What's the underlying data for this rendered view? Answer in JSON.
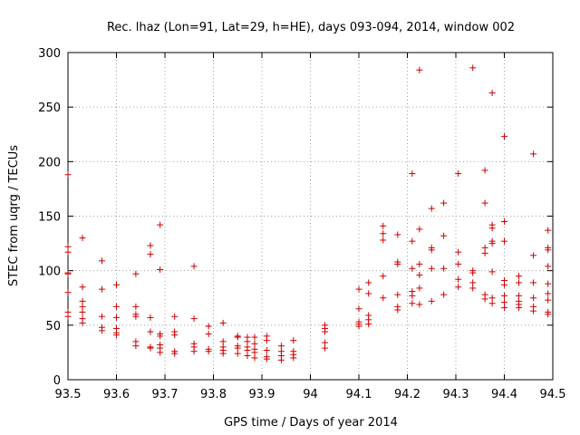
{
  "chart_data": {
    "type": "scatter",
    "title": "Rec. lhaz (Lon=91, Lat=29, h=HE), days 093-094, 2014, window 002",
    "xlabel": "GPS time / Days of year 2014",
    "ylabel": "STEC from uqrg / TECUs",
    "xlim": [
      93.5,
      94.5
    ],
    "ylim": [
      0,
      300
    ],
    "xticks": [
      "93.5",
      "93.6",
      "93.7",
      "93.8",
      "93.9",
      "94",
      "94.1",
      "94.2",
      "94.3",
      "94.4",
      "94.5"
    ],
    "yticks": [
      "0",
      "50",
      "100",
      "150",
      "200",
      "250",
      "300"
    ],
    "grid": true,
    "marker": "+",
    "color": "#cc0000",
    "points": [
      [
        93.5,
        188
      ],
      [
        93.5,
        122
      ],
      [
        93.5,
        117
      ],
      [
        93.5,
        98
      ],
      [
        93.5,
        97
      ],
      [
        93.5,
        80
      ],
      [
        93.5,
        62
      ],
      [
        93.5,
        58
      ],
      [
        93.53,
        130
      ],
      [
        93.53,
        85
      ],
      [
        93.53,
        72
      ],
      [
        93.53,
        67
      ],
      [
        93.53,
        62
      ],
      [
        93.53,
        56
      ],
      [
        93.53,
        52
      ],
      [
        93.57,
        109
      ],
      [
        93.57,
        83
      ],
      [
        93.57,
        58
      ],
      [
        93.57,
        48
      ],
      [
        93.57,
        45
      ],
      [
        93.6,
        87
      ],
      [
        93.6,
        67
      ],
      [
        93.6,
        57
      ],
      [
        93.6,
        47
      ],
      [
        93.6,
        43
      ],
      [
        93.6,
        41
      ],
      [
        93.64,
        97
      ],
      [
        93.64,
        67
      ],
      [
        93.64,
        60
      ],
      [
        93.64,
        58
      ],
      [
        93.64,
        35
      ],
      [
        93.64,
        31
      ],
      [
        93.67,
        123
      ],
      [
        93.67,
        115
      ],
      [
        93.67,
        57
      ],
      [
        93.67,
        44
      ],
      [
        93.67,
        30
      ],
      [
        93.67,
        29
      ],
      [
        93.69,
        142
      ],
      [
        93.69,
        101
      ],
      [
        93.69,
        42
      ],
      [
        93.69,
        40
      ],
      [
        93.69,
        32
      ],
      [
        93.69,
        29
      ],
      [
        93.69,
        25
      ],
      [
        93.72,
        58
      ],
      [
        93.72,
        44
      ],
      [
        93.72,
        41
      ],
      [
        93.72,
        26
      ],
      [
        93.72,
        24
      ],
      [
        93.76,
        104
      ],
      [
        93.76,
        56
      ],
      [
        93.76,
        33
      ],
      [
        93.76,
        30
      ],
      [
        93.76,
        26
      ],
      [
        93.79,
        49
      ],
      [
        93.79,
        42
      ],
      [
        93.79,
        28
      ],
      [
        93.79,
        26
      ],
      [
        93.82,
        52
      ],
      [
        93.82,
        35
      ],
      [
        93.82,
        30
      ],
      [
        93.82,
        27
      ],
      [
        93.82,
        24
      ],
      [
        93.85,
        40
      ],
      [
        93.85,
        39
      ],
      [
        93.85,
        31
      ],
      [
        93.85,
        29
      ],
      [
        93.85,
        24
      ],
      [
        93.87,
        39
      ],
      [
        93.87,
        35
      ],
      [
        93.87,
        30
      ],
      [
        93.87,
        27
      ],
      [
        93.87,
        22
      ],
      [
        93.885,
        39
      ],
      [
        93.885,
        33
      ],
      [
        93.885,
        28
      ],
      [
        93.885,
        25
      ],
      [
        93.885,
        20
      ],
      [
        93.91,
        40
      ],
      [
        93.91,
        36
      ],
      [
        93.91,
        27
      ],
      [
        93.91,
        21
      ],
      [
        93.91,
        19
      ],
      [
        93.94,
        31
      ],
      [
        93.94,
        26
      ],
      [
        93.94,
        22
      ],
      [
        93.94,
        18
      ],
      [
        93.965,
        36
      ],
      [
        93.965,
        26
      ],
      [
        93.965,
        23
      ],
      [
        93.965,
        20
      ],
      [
        94.03,
        50
      ],
      [
        94.03,
        47
      ],
      [
        94.03,
        44
      ],
      [
        94.03,
        34
      ],
      [
        94.03,
        29
      ],
      [
        94.1,
        83
      ],
      [
        94.1,
        65
      ],
      [
        94.1,
        53
      ],
      [
        94.1,
        51
      ],
      [
        94.1,
        49
      ],
      [
        94.12,
        89
      ],
      [
        94.12,
        79
      ],
      [
        94.12,
        59
      ],
      [
        94.12,
        55
      ],
      [
        94.12,
        51
      ],
      [
        94.15,
        141
      ],
      [
        94.15,
        134
      ],
      [
        94.15,
        128
      ],
      [
        94.15,
        95
      ],
      [
        94.15,
        75
      ],
      [
        94.18,
        133
      ],
      [
        94.18,
        108
      ],
      [
        94.18,
        106
      ],
      [
        94.18,
        78
      ],
      [
        94.18,
        67
      ],
      [
        94.18,
        64
      ],
      [
        94.21,
        189
      ],
      [
        94.21,
        127
      ],
      [
        94.21,
        102
      ],
      [
        94.21,
        81
      ],
      [
        94.21,
        77
      ],
      [
        94.21,
        70
      ],
      [
        94.225,
        284
      ],
      [
        94.225,
        138
      ],
      [
        94.225,
        106
      ],
      [
        94.225,
        96
      ],
      [
        94.225,
        84
      ],
      [
        94.225,
        69
      ],
      [
        94.25,
        157
      ],
      [
        94.25,
        121
      ],
      [
        94.25,
        119
      ],
      [
        94.25,
        102
      ],
      [
        94.25,
        72
      ],
      [
        94.275,
        162
      ],
      [
        94.275,
        132
      ],
      [
        94.275,
        102
      ],
      [
        94.275,
        78
      ],
      [
        94.305,
        189
      ],
      [
        94.305,
        117
      ],
      [
        94.305,
        106
      ],
      [
        94.305,
        92
      ],
      [
        94.305,
        85
      ],
      [
        94.335,
        286
      ],
      [
        94.335,
        100
      ],
      [
        94.335,
        98
      ],
      [
        94.335,
        89
      ],
      [
        94.335,
        84
      ],
      [
        94.36,
        192
      ],
      [
        94.36,
        162
      ],
      [
        94.36,
        121
      ],
      [
        94.36,
        116
      ],
      [
        94.36,
        78
      ],
      [
        94.36,
        74
      ],
      [
        94.375,
        263
      ],
      [
        94.375,
        142
      ],
      [
        94.375,
        139
      ],
      [
        94.375,
        127
      ],
      [
        94.375,
        125
      ],
      [
        94.375,
        99
      ],
      [
        94.375,
        75
      ],
      [
        94.375,
        70
      ],
      [
        94.4,
        223
      ],
      [
        94.4,
        145
      ],
      [
        94.4,
        127
      ],
      [
        94.4,
        91
      ],
      [
        94.4,
        87
      ],
      [
        94.4,
        77
      ],
      [
        94.4,
        71
      ],
      [
        94.4,
        66
      ],
      [
        94.43,
        95
      ],
      [
        94.43,
        89
      ],
      [
        94.43,
        77
      ],
      [
        94.43,
        72
      ],
      [
        94.43,
        69
      ],
      [
        94.43,
        66
      ],
      [
        94.46,
        207
      ],
      [
        94.46,
        114
      ],
      [
        94.46,
        89
      ],
      [
        94.46,
        75
      ],
      [
        94.46,
        67
      ],
      [
        94.46,
        63
      ],
      [
        94.49,
        137
      ],
      [
        94.49,
        121
      ],
      [
        94.49,
        119
      ],
      [
        94.49,
        104
      ],
      [
        94.49,
        88
      ],
      [
        94.49,
        79
      ],
      [
        94.49,
        73
      ],
      [
        94.49,
        62
      ],
      [
        94.49,
        60
      ]
    ]
  }
}
